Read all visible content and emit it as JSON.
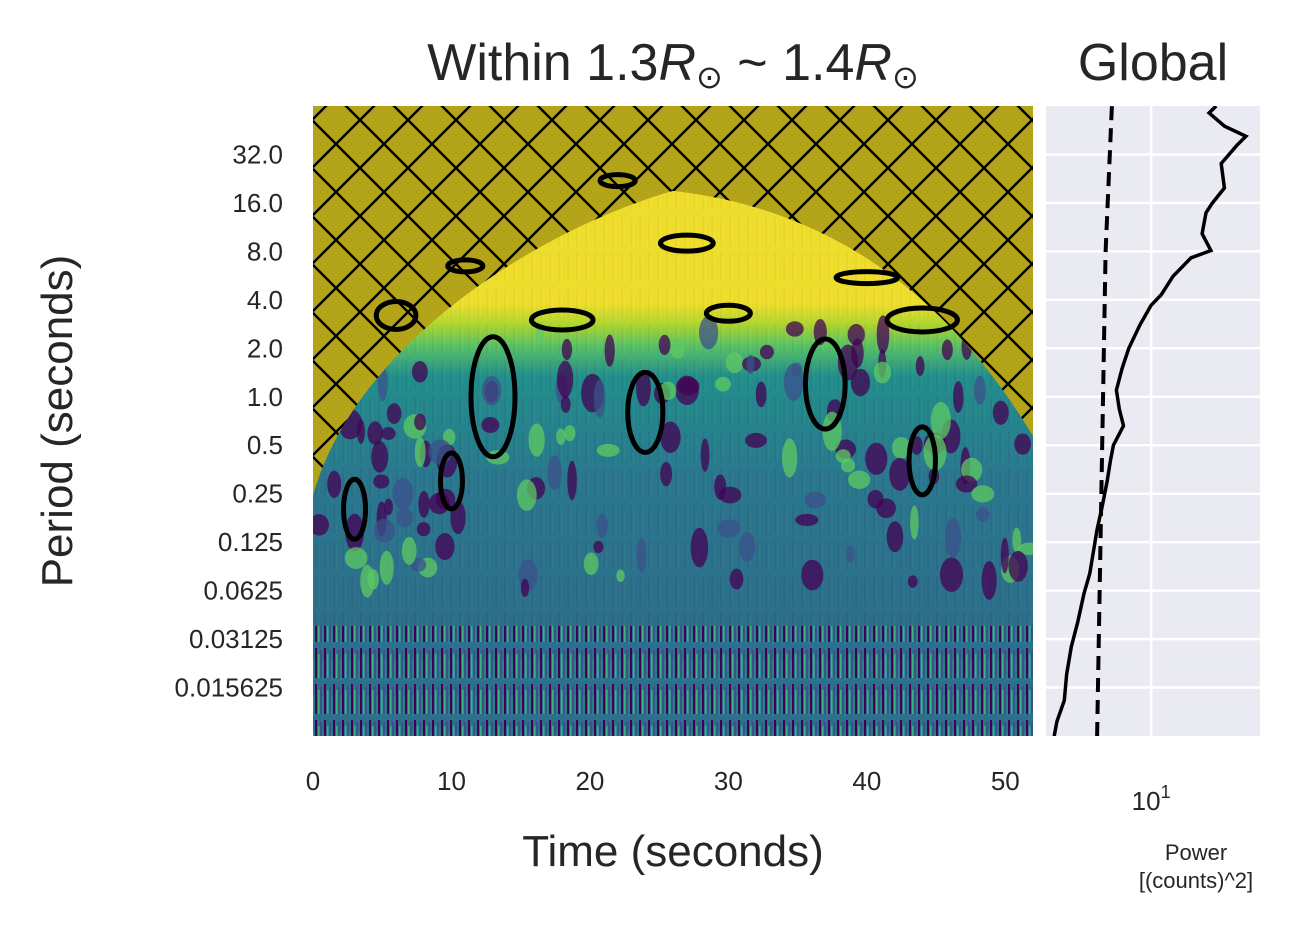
{
  "chart_data": [
    {
      "type": "heatmap",
      "title": "Within 1.3R⊙ ~ 1.4R⊙",
      "title_parts": {
        "prefix": "Within 1.3",
        "r1": "R",
        "mid": " ~ 1.4",
        "r2": "R",
        "sun": "⊙"
      },
      "xlabel": "Time (seconds)",
      "ylabel": "Period (seconds)",
      "xlim": [
        0,
        52
      ],
      "x_ticks": [
        0,
        10,
        20,
        30,
        40,
        50
      ],
      "y_scale": "log2",
      "ylim": [
        0.0078125,
        64
      ],
      "y_ticks": [
        32,
        16,
        8,
        4,
        2,
        1,
        0.5,
        0.25,
        0.125,
        0.0625,
        0.03125,
        0.015625
      ],
      "y_tick_labels": [
        "32.0",
        "16.0",
        "8.0",
        "4.0",
        "2.0",
        "1.0",
        "0.5",
        "0.25",
        "0.125",
        "0.0625",
        "0.03125",
        "0.015625"
      ],
      "colormap": "viridis",
      "cone_of_influence": "hatched",
      "cone_peak": {
        "time": 26,
        "period": 19
      },
      "significance_contours": "black",
      "colors": {
        "coi_fill": "#b3a419",
        "hatch": "#000000",
        "contour": "#000000",
        "high": "#fde725",
        "mid": "#21918c",
        "low": "#440154"
      }
    },
    {
      "type": "line",
      "title": "Global",
      "xlabel": "Power\n[(counts)^2]",
      "xlabel_lines": [
        "Power",
        "[(counts)^2]"
      ],
      "x_scale": "log",
      "x_tick_label": {
        "base": "10",
        "exp": "1"
      },
      "xlim": [
        3.7,
        28
      ],
      "y_scale": "log2",
      "ylim": [
        0.0078125,
        64
      ],
      "series": [
        {
          "style": "solid",
          "points": [
            [
              4.0,
              0.0078
            ],
            [
              4.1,
              0.0096
            ],
            [
              4.4,
              0.013
            ],
            [
              4.5,
              0.019
            ],
            [
              4.7,
              0.028
            ],
            [
              5.0,
              0.04
            ],
            [
              5.3,
              0.06
            ],
            [
              5.6,
              0.08
            ],
            [
              5.8,
              0.11
            ],
            [
              6.0,
              0.15
            ],
            [
              6.3,
              0.21
            ],
            [
              6.6,
              0.3
            ],
            [
              6.8,
              0.4
            ],
            [
              7.0,
              0.5
            ],
            [
              7.7,
              0.66
            ],
            [
              7.4,
              0.84
            ],
            [
              7.2,
              1.1
            ],
            [
              7.6,
              1.5
            ],
            [
              8.1,
              2.0
            ],
            [
              9.0,
              2.8
            ],
            [
              10.0,
              3.7
            ],
            [
              11.0,
              4.3
            ],
            [
              12.3,
              5.6
            ],
            [
              14.6,
              7.3
            ],
            [
              17.6,
              8.1
            ],
            [
              16.2,
              10.3
            ],
            [
              16.8,
              13.9
            ],
            [
              17.8,
              15.9
            ],
            [
              20.0,
              19.8
            ],
            [
              19.4,
              28.1
            ],
            [
              22.5,
              36.5
            ],
            [
              24.5,
              41.5
            ],
            [
              20.0,
              48.0
            ],
            [
              17.3,
              58.0
            ],
            [
              18.5,
              64.0
            ]
          ]
        },
        {
          "style": "dashed",
          "points": [
            [
              6.0,
              0.0078125
            ],
            [
              6.5,
              8.0
            ],
            [
              6.9,
              64.0
            ]
          ]
        }
      ],
      "grid": true,
      "colors": {
        "background": "#eaeaf2",
        "grid": "#ffffff",
        "line": "#000000"
      }
    }
  ]
}
